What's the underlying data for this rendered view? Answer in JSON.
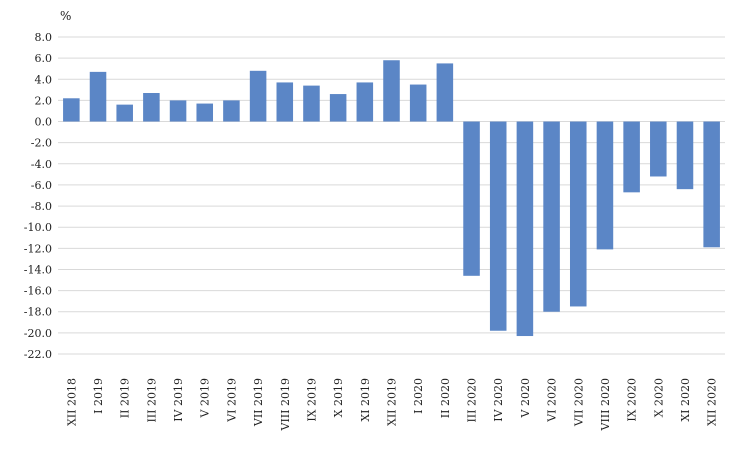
{
  "chart_data": {
    "type": "bar",
    "title": "",
    "ylabel": "%",
    "xlabel": "",
    "ylim": [
      -22,
      8
    ],
    "yticks": [
      8,
      6,
      4,
      2,
      0,
      -2,
      -4,
      -6,
      -8,
      -10,
      -12,
      -14,
      -16,
      -18,
      -20,
      -22
    ],
    "ytick_labels": [
      "8.0",
      "6.0",
      "4.0",
      "2.0",
      "0.0",
      "-2.0",
      "-4.0",
      "-6.0",
      "-8.0",
      "-10.0",
      "-12.0",
      "-14.0",
      "-16.0",
      "-18.0",
      "-20.0",
      "-22.0"
    ],
    "grid": true,
    "legend": "none",
    "bar_color": "#5b86c6",
    "categories": [
      "XII 2018",
      "I 2019",
      "II 2019",
      "III 2019",
      "IV 2019",
      "V 2019",
      "VI 2019",
      "VII 2019",
      "VIII 2019",
      "IX 2019",
      "X 2019",
      "XI 2019",
      "XII 2019",
      "I 2020",
      "II 2020",
      "III 2020",
      "IV 2020",
      "V 2020",
      "VI 2020",
      "VII 2020",
      "VIII 2020",
      "IX 2020",
      "X 2020",
      "XI 2020",
      "XII 2020"
    ],
    "values": [
      2.2,
      4.7,
      1.6,
      2.7,
      2.0,
      1.7,
      2.0,
      4.8,
      3.7,
      3.4,
      2.6,
      3.7,
      5.8,
      3.5,
      5.5,
      -14.6,
      -19.8,
      -20.3,
      -18.0,
      -17.5,
      -12.1,
      -6.7,
      -5.2,
      -6.4,
      -11.9
    ]
  }
}
